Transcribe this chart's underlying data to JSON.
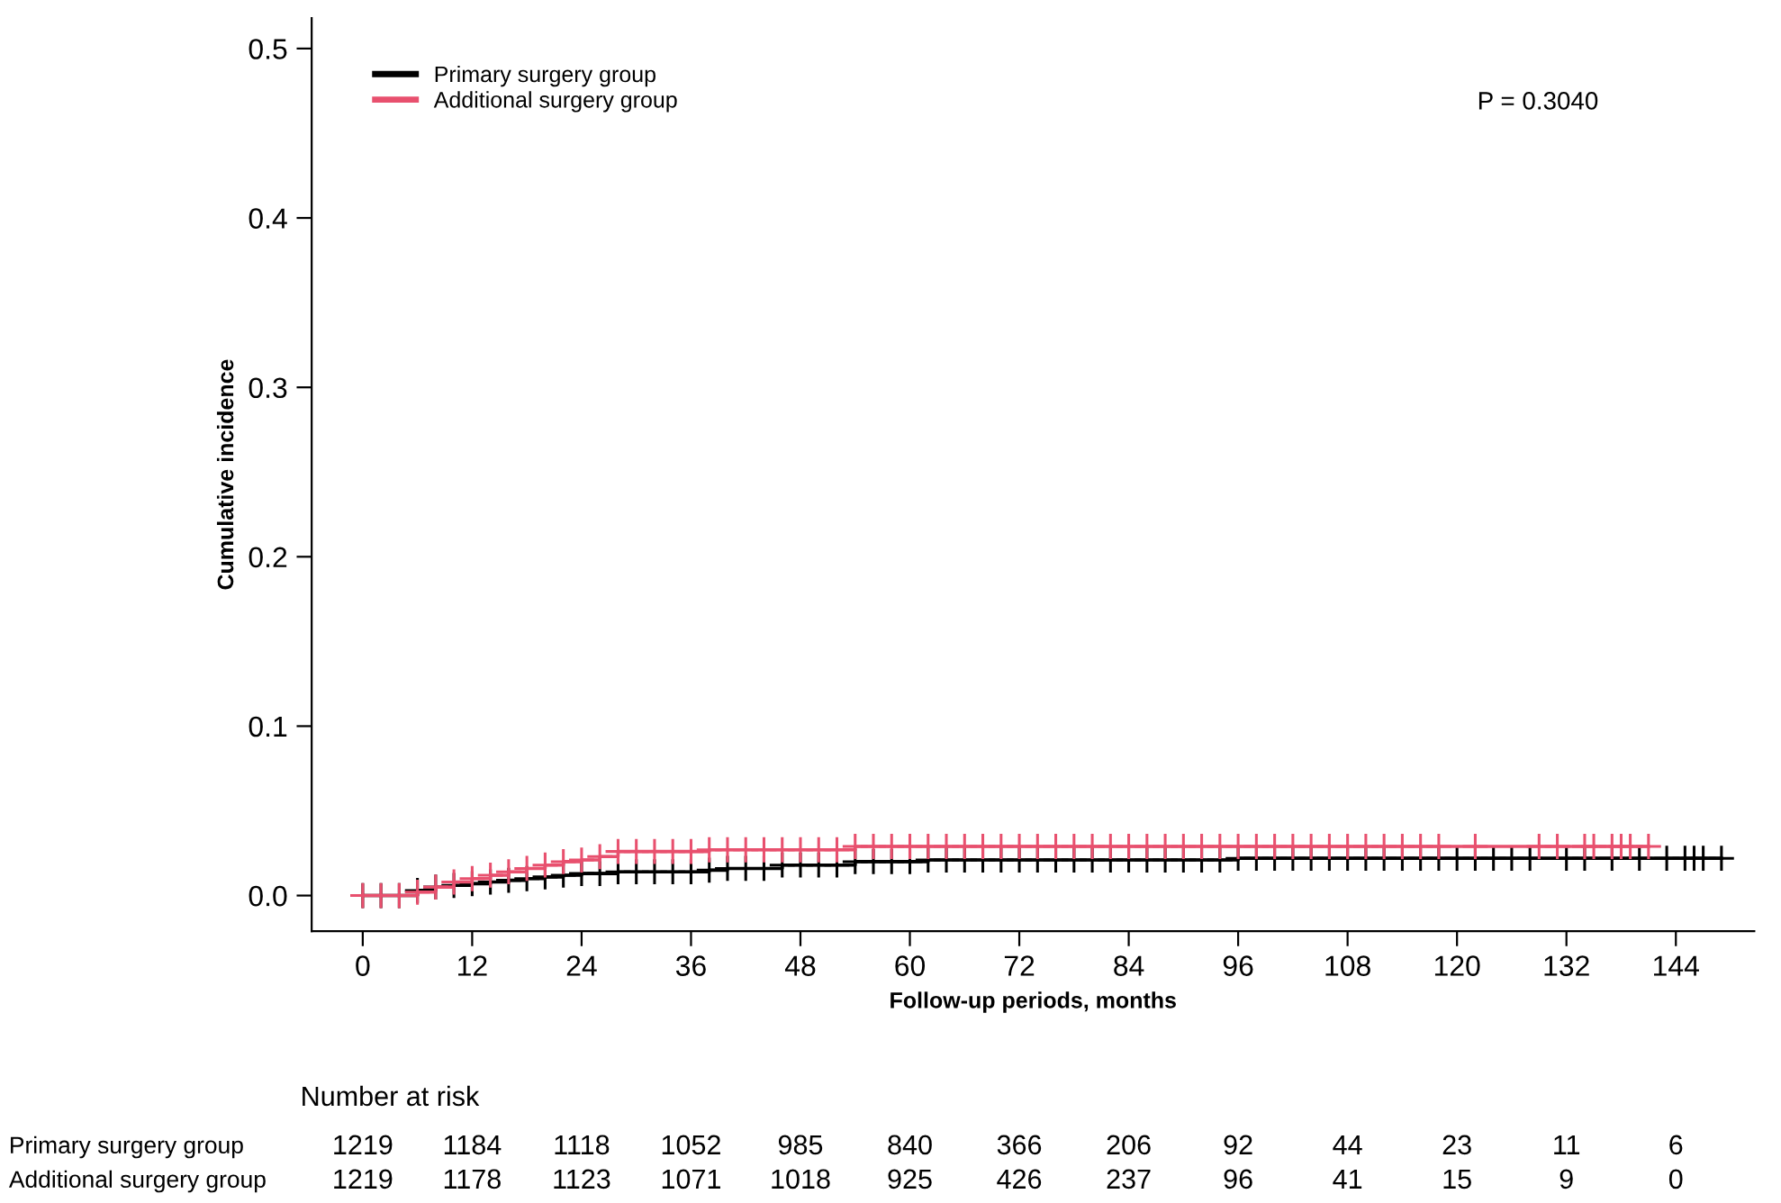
{
  "chart_data": {
    "type": "step",
    "xlabel": "Follow-up periods, months",
    "ylabel": "Cumulative incidence",
    "legend": "top left",
    "marker": "cross",
    "grid": false,
    "xlim": [
      -5.6,
      152.6
    ],
    "xticks": [
      0,
      12,
      24,
      36,
      48,
      60,
      72,
      84,
      96,
      108,
      120,
      132,
      144
    ],
    "ylim": [
      -0.021,
      0.518
    ],
    "yticks": [
      {
        "value": 0,
        "label": "0.0"
      },
      {
        "value": 0.1,
        "label": "0.1"
      },
      {
        "value": 0.2,
        "label": "0.2"
      },
      {
        "value": 0.3,
        "label": "0.3"
      },
      {
        "value": 0.4,
        "label": "0.4"
      },
      {
        "value": 0.5,
        "label": "0.5"
      }
    ],
    "series": [
      {
        "name": "Primary surgery group",
        "color": "#000000",
        "x": [
          0,
          2,
          4,
          6,
          8,
          10,
          12,
          14,
          16,
          18,
          20,
          22,
          24,
          26,
          28,
          30,
          32,
          34,
          36,
          38,
          40,
          42,
          44,
          46,
          48,
          50,
          52,
          54,
          56,
          58,
          60,
          62,
          64,
          66,
          68,
          70,
          72,
          74,
          76,
          78,
          80,
          82,
          84,
          86,
          88,
          90,
          92,
          94,
          96,
          98,
          100,
          102,
          104,
          106,
          108,
          110,
          112,
          114,
          116,
          118,
          120,
          122,
          124,
          126,
          128,
          132,
          134,
          137,
          140,
          143,
          145,
          146,
          147,
          149
        ],
        "values": [
          0,
          0,
          0,
          0.003,
          0.005,
          0.006,
          0.007,
          0.008,
          0.009,
          0.01,
          0.011,
          0.012,
          0.013,
          0.013,
          0.014,
          0.014,
          0.014,
          0.014,
          0.014,
          0.015,
          0.016,
          0.016,
          0.016,
          0.018,
          0.018,
          0.018,
          0.018,
          0.02,
          0.02,
          0.02,
          0.02,
          0.021,
          0.021,
          0.021,
          0.021,
          0.021,
          0.021,
          0.021,
          0.021,
          0.021,
          0.021,
          0.021,
          0.021,
          0.021,
          0.021,
          0.021,
          0.021,
          0.021,
          0.022,
          0.022,
          0.022,
          0.022,
          0.022,
          0.022,
          0.022,
          0.022,
          0.022,
          0.022,
          0.022,
          0.022,
          0.022,
          0.022,
          0.022,
          0.022,
          0.022,
          0.022,
          0.022,
          0.022,
          0.022,
          0.022,
          0.022,
          0.022,
          0.022,
          0.022
        ]
      },
      {
        "name": "Additional surgery group",
        "color": "#e8506e",
        "x": [
          0,
          2,
          4,
          6,
          8,
          10,
          12,
          14,
          16,
          18,
          20,
          22,
          24,
          26,
          28,
          30,
          32,
          34,
          36,
          38,
          40,
          42,
          44,
          46,
          48,
          50,
          52,
          54,
          56,
          58,
          60,
          62,
          64,
          66,
          68,
          70,
          72,
          74,
          76,
          78,
          80,
          82,
          84,
          86,
          88,
          90,
          92,
          94,
          96,
          98,
          100,
          102,
          104,
          106,
          108,
          110,
          112,
          114,
          116,
          118,
          122,
          129,
          131,
          134,
          135,
          137,
          138,
          139,
          141
        ],
        "values": [
          0,
          0,
          0,
          0.002,
          0.005,
          0.008,
          0.01,
          0.012,
          0.014,
          0.016,
          0.018,
          0.02,
          0.021,
          0.023,
          0.026,
          0.026,
          0.026,
          0.026,
          0.026,
          0.027,
          0.027,
          0.027,
          0.027,
          0.027,
          0.027,
          0.027,
          0.027,
          0.029,
          0.029,
          0.029,
          0.029,
          0.029,
          0.029,
          0.029,
          0.029,
          0.029,
          0.029,
          0.029,
          0.029,
          0.029,
          0.029,
          0.029,
          0.029,
          0.029,
          0.029,
          0.029,
          0.029,
          0.029,
          0.029,
          0.029,
          0.029,
          0.029,
          0.029,
          0.029,
          0.029,
          0.029,
          0.029,
          0.029,
          0.029,
          0.029,
          0.029,
          0.029,
          0.029,
          0.029,
          0.029,
          0.029,
          0.029,
          0.029,
          0.029
        ]
      }
    ],
    "annotations": [
      "P = 0.3040",
      "Number at risk",
      "Primary surgery group",
      "1219",
      "1184",
      "1118",
      "1052",
      "985",
      "840",
      "366",
      "206",
      "92",
      "44",
      "23",
      "11",
      "6",
      "Additional surgery group",
      "1219",
      "1178",
      "1123",
      "1071",
      "1018",
      "925",
      "426",
      "237",
      "96",
      "41",
      "15",
      "9",
      "0"
    ]
  }
}
